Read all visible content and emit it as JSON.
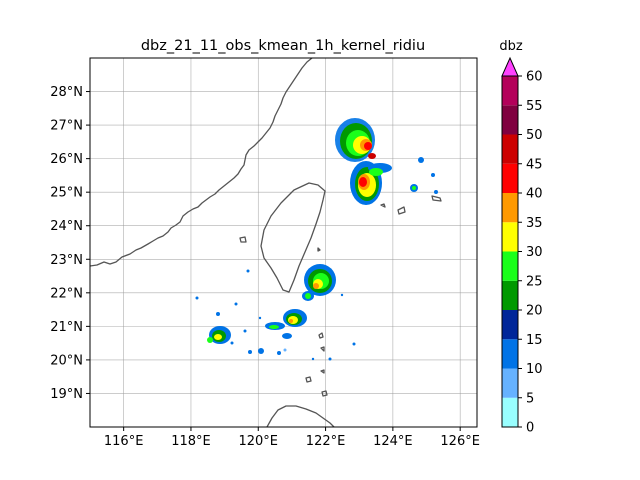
{
  "title": "dbz_21_11_obs_kmean_1h_kernel_ridiu",
  "map": {
    "lon_range": [
      115,
      126.5
    ],
    "lat_range": [
      18,
      29
    ],
    "lon_ticks": [
      {
        "value": 116,
        "label": "116°E"
      },
      {
        "value": 118,
        "label": "118°E"
      },
      {
        "value": 120,
        "label": "120°E"
      },
      {
        "value": 122,
        "label": "122°E"
      },
      {
        "value": 124,
        "label": "124°E"
      },
      {
        "value": 126,
        "label": "126°E"
      }
    ],
    "lat_ticks": [
      {
        "value": 19,
        "label": "19°N"
      },
      {
        "value": 20,
        "label": "20°N"
      },
      {
        "value": 21,
        "label": "21°N"
      },
      {
        "value": 22,
        "label": "22°N"
      },
      {
        "value": 23,
        "label": "23°N"
      },
      {
        "value": 24,
        "label": "24°N"
      },
      {
        "value": 25,
        "label": "25°N"
      },
      {
        "value": 26,
        "label": "26°N"
      },
      {
        "value": 27,
        "label": "27°N"
      },
      {
        "value": 28,
        "label": "28°N"
      }
    ],
    "grid": true,
    "coastline_color": "#555555"
  },
  "colorbar": {
    "unit": "dbz",
    "levels": [
      {
        "label": "0",
        "value": 0
      },
      {
        "label": "5",
        "value": 5
      },
      {
        "label": "10",
        "value": 10
      },
      {
        "label": "15",
        "value": 15
      },
      {
        "label": "20",
        "value": 20
      },
      {
        "label": "25",
        "value": 25
      },
      {
        "label": "30",
        "value": 30
      },
      {
        "label": "35",
        "value": 35
      },
      {
        "label": "40",
        "value": 40
      },
      {
        "label": "45",
        "value": 45
      },
      {
        "label": "50",
        "value": 50
      },
      {
        "label": "55",
        "value": 55
      },
      {
        "label": "60",
        "value": 60
      }
    ],
    "colors": [
      "#99ffff",
      "#66b2ff",
      "#0073e6",
      "#002699",
      "#009900",
      "#1aff1a",
      "#ffff00",
      "#ff9900",
      "#ff0000",
      "#cc0000",
      "#800040",
      "#b3005a"
    ],
    "extend_color": "#ff40ff"
  }
}
